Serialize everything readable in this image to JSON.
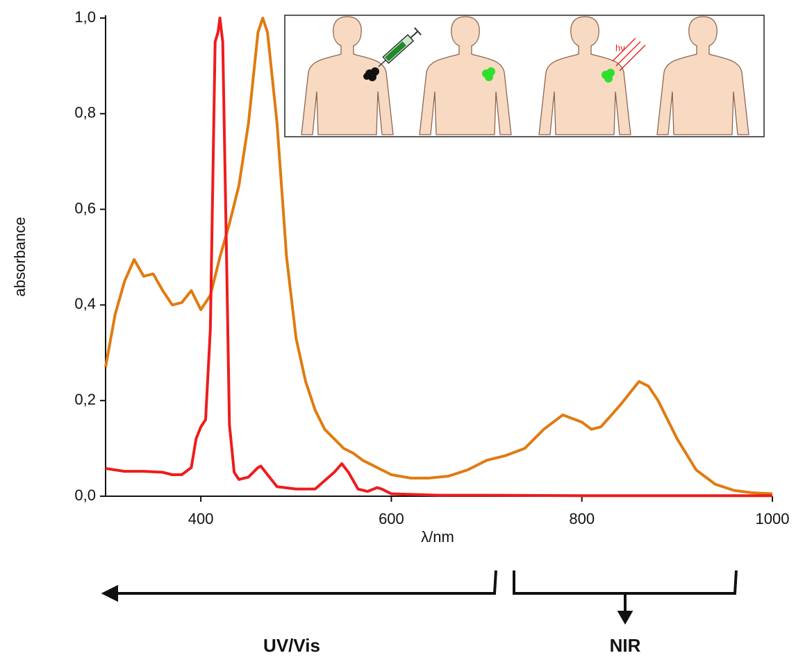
{
  "chart_data": {
    "type": "line",
    "xlabel": "λ/nm",
    "ylabel": "absorbance",
    "annotations": [
      "UV/Vis",
      "NIR",
      "hν"
    ],
    "xlim": [
      300,
      1000
    ],
    "xticks": [
      400,
      600,
      800,
      1000
    ],
    "ylim": [
      0,
      1.0
    ],
    "yticks": [
      {
        "value": 0,
        "label": "0,0"
      },
      {
        "value": 0.2,
        "label": "0,2"
      },
      {
        "value": 0.4,
        "label": "0,4"
      },
      {
        "value": 0.6,
        "label": "0,6"
      },
      {
        "value": 0.8,
        "label": "0,8"
      },
      {
        "value": 1.0,
        "label": "1,0"
      }
    ],
    "series": [
      {
        "color": "#e07b10",
        "x": [
          300,
          310,
          320,
          330,
          340,
          350,
          360,
          370,
          380,
          390,
          400,
          410,
          420,
          430,
          440,
          450,
          460,
          465,
          470,
          480,
          490,
          500,
          510,
          520,
          530,
          540,
          550,
          560,
          570,
          580,
          590,
          600,
          620,
          640,
          660,
          680,
          700,
          720,
          740,
          760,
          780,
          800,
          810,
          820,
          840,
          860,
          870,
          880,
          900,
          920,
          940,
          960,
          980,
          1000
        ],
        "values": [
          0.27,
          0.38,
          0.45,
          0.495,
          0.46,
          0.465,
          0.43,
          0.4,
          0.405,
          0.43,
          0.39,
          0.42,
          0.5,
          0.57,
          0.65,
          0.78,
          0.97,
          1.0,
          0.97,
          0.78,
          0.5,
          0.33,
          0.24,
          0.18,
          0.14,
          0.12,
          0.1,
          0.09,
          0.075,
          0.065,
          0.055,
          0.045,
          0.038,
          0.038,
          0.042,
          0.055,
          0.075,
          0.085,
          0.1,
          0.14,
          0.17,
          0.155,
          0.14,
          0.145,
          0.19,
          0.24,
          0.23,
          0.2,
          0.12,
          0.055,
          0.025,
          0.012,
          0.007,
          0.005
        ]
      },
      {
        "color": "#ee1c1c",
        "x": [
          300,
          320,
          340,
          360,
          370,
          380,
          390,
          395,
          400,
          405,
          410,
          415,
          418,
          420,
          423,
          427,
          430,
          435,
          440,
          450,
          460,
          463,
          470,
          480,
          500,
          520,
          540,
          548,
          555,
          565,
          575,
          585,
          590,
          600,
          650,
          700,
          800,
          900,
          1000
        ],
        "values": [
          0.058,
          0.052,
          0.052,
          0.05,
          0.045,
          0.045,
          0.06,
          0.12,
          0.145,
          0.16,
          0.35,
          0.95,
          0.97,
          1.0,
          0.95,
          0.5,
          0.15,
          0.05,
          0.035,
          0.04,
          0.06,
          0.063,
          0.045,
          0.02,
          0.015,
          0.015,
          0.05,
          0.068,
          0.05,
          0.015,
          0.01,
          0.018,
          0.015,
          0.005,
          0.002,
          0.002,
          0.001,
          0.001,
          0.001
        ]
      }
    ]
  }
}
